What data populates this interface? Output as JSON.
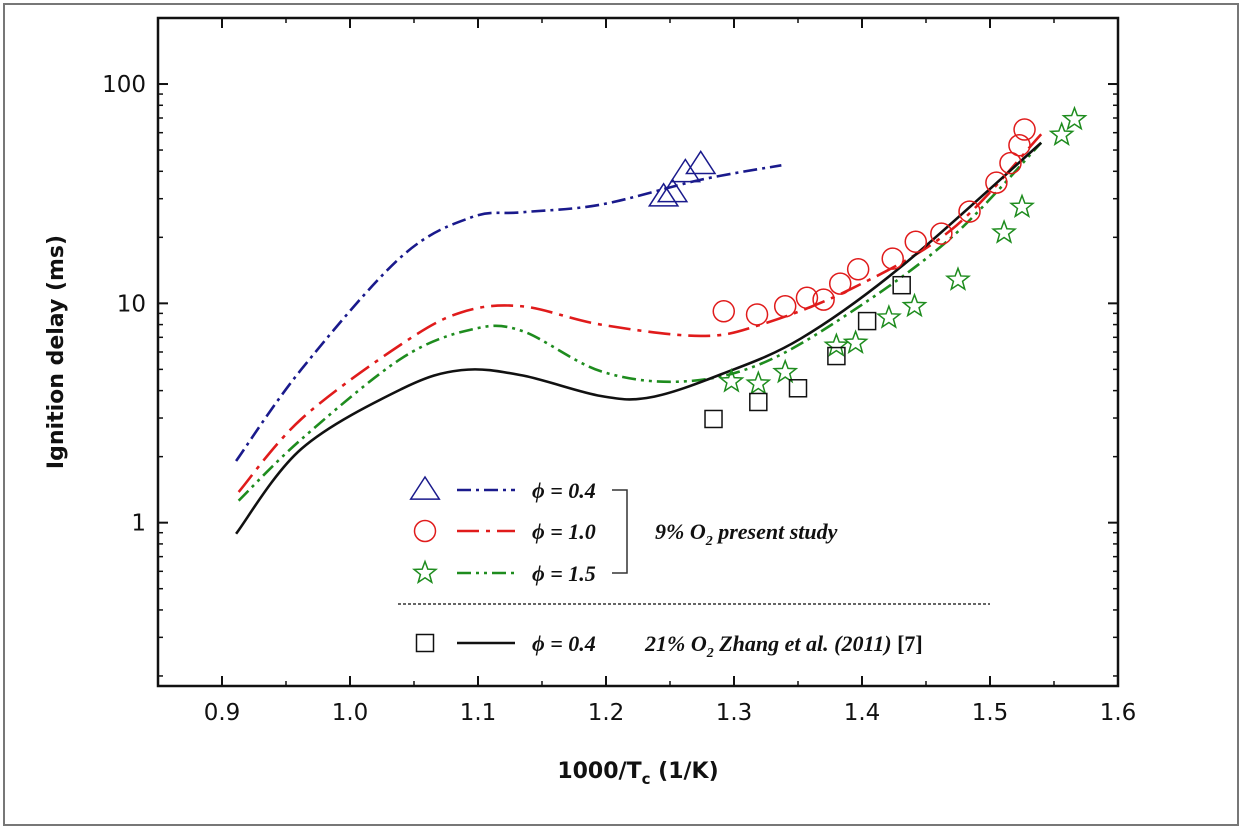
{
  "chart_data": {
    "type": "scatter",
    "xlabel": "1000/T",
    "xlabel_sub": "c",
    "xlabel_unit": " (1/K)",
    "ylabel": "Ignition delay (ms)",
    "xlim": [
      0.85,
      1.6
    ],
    "ylim": [
      0.18,
      200
    ],
    "yscale": "log",
    "xticks": [
      "0.9",
      "1.0",
      "1.1",
      "1.2",
      "1.3",
      "1.4",
      "1.5",
      "1.6"
    ],
    "yticks": [
      "1",
      "10",
      "100"
    ],
    "grid": false,
    "legend_position": "bottom-center",
    "series": [
      {
        "name": "ϕ = 0.4",
        "marker": "triangle",
        "color": "#1a1a8c",
        "dash": "14,5,3,5",
        "points": [
          [
            1.245,
            30.6
          ],
          [
            1.252,
            32
          ],
          [
            1.262,
            39.5
          ],
          [
            1.274,
            43
          ]
        ],
        "model": [
          [
            0.911,
            1.91
          ],
          [
            0.962,
            5.0
          ],
          [
            1.04,
            16.3
          ],
          [
            1.095,
            24.7
          ],
          [
            1.134,
            26
          ],
          [
            1.196,
            28.2
          ],
          [
            1.274,
            36.6
          ],
          [
            1.337,
            42.6
          ]
        ]
      },
      {
        "name": "ϕ = 1.0",
        "marker": "circle",
        "color": "#e01b1b",
        "dash": "22,7,4,7",
        "points": [
          [
            1.292,
            9.2
          ],
          [
            1.318,
            8.9
          ],
          [
            1.34,
            9.7
          ],
          [
            1.357,
            10.6
          ],
          [
            1.37,
            10.4
          ],
          [
            1.383,
            12.3
          ],
          [
            1.397,
            14.3
          ],
          [
            1.424,
            16
          ],
          [
            1.442,
            19.1
          ],
          [
            1.462,
            20.8
          ],
          [
            1.484,
            26.2
          ],
          [
            1.505,
            35.5
          ],
          [
            1.516,
            43.6
          ],
          [
            1.523,
            52.6
          ],
          [
            1.527,
            62
          ]
        ],
        "model": [
          [
            0.913,
            1.38
          ],
          [
            0.962,
            2.97
          ],
          [
            1.04,
            6.5
          ],
          [
            1.087,
            9.1
          ],
          [
            1.134,
            9.7
          ],
          [
            1.196,
            8.0
          ],
          [
            1.274,
            7.1
          ],
          [
            1.321,
            8.0
          ],
          [
            1.391,
            11.6
          ],
          [
            1.47,
            21.7
          ],
          [
            1.54,
            59
          ]
        ]
      },
      {
        "name": "ϕ = 1.5",
        "marker": "star",
        "color": "#1e8c1e",
        "dash": "14,5,3,5,3,5",
        "points": [
          [
            1.298,
            4.4
          ],
          [
            1.319,
            4.3
          ],
          [
            1.34,
            4.85
          ],
          [
            1.38,
            6.4
          ],
          [
            1.395,
            6.6
          ],
          [
            1.421,
            8.6
          ],
          [
            1.441,
            9.7
          ],
          [
            1.475,
            12.8
          ],
          [
            1.511,
            21
          ],
          [
            1.525,
            27.5
          ],
          [
            1.556,
            58.6
          ],
          [
            1.566,
            69
          ]
        ],
        "model": [
          [
            0.913,
            1.26
          ],
          [
            0.962,
            2.4
          ],
          [
            1.04,
            5.6
          ],
          [
            1.095,
            7.6
          ],
          [
            1.134,
            7.5
          ],
          [
            1.196,
            4.9
          ],
          [
            1.259,
            4.4
          ],
          [
            1.321,
            5.3
          ],
          [
            1.391,
            9.1
          ],
          [
            1.47,
            20
          ],
          [
            1.54,
            54
          ]
        ]
      },
      {
        "name": "ϕ = 0.4",
        "marker": "square",
        "color": "#111111",
        "dash": "",
        "points": [
          [
            1.284,
            2.97
          ],
          [
            1.319,
            3.55
          ],
          [
            1.35,
            4.1
          ],
          [
            1.38,
            5.75
          ],
          [
            1.404,
            8.3
          ],
          [
            1.431,
            12.1
          ]
        ],
        "model": [
          [
            0.911,
            0.89
          ],
          [
            0.962,
            2.17
          ],
          [
            1.04,
            4.06
          ],
          [
            1.087,
            4.96
          ],
          [
            1.134,
            4.7
          ],
          [
            1.196,
            3.78
          ],
          [
            1.235,
            3.73
          ],
          [
            1.29,
            4.75
          ],
          [
            1.352,
            6.9
          ],
          [
            1.43,
            14.6
          ],
          [
            1.54,
            54
          ]
        ]
      }
    ],
    "legend": {
      "group_label_pre": "9% O",
      "group_label_sub": "2",
      "group_label_post": "  present study",
      "ref_label_pre": "21% O",
      "ref_label_sub": "2",
      "ref_label_post": "  Zhang et al. (2011) ",
      "ref_cite": "[7]"
    }
  }
}
